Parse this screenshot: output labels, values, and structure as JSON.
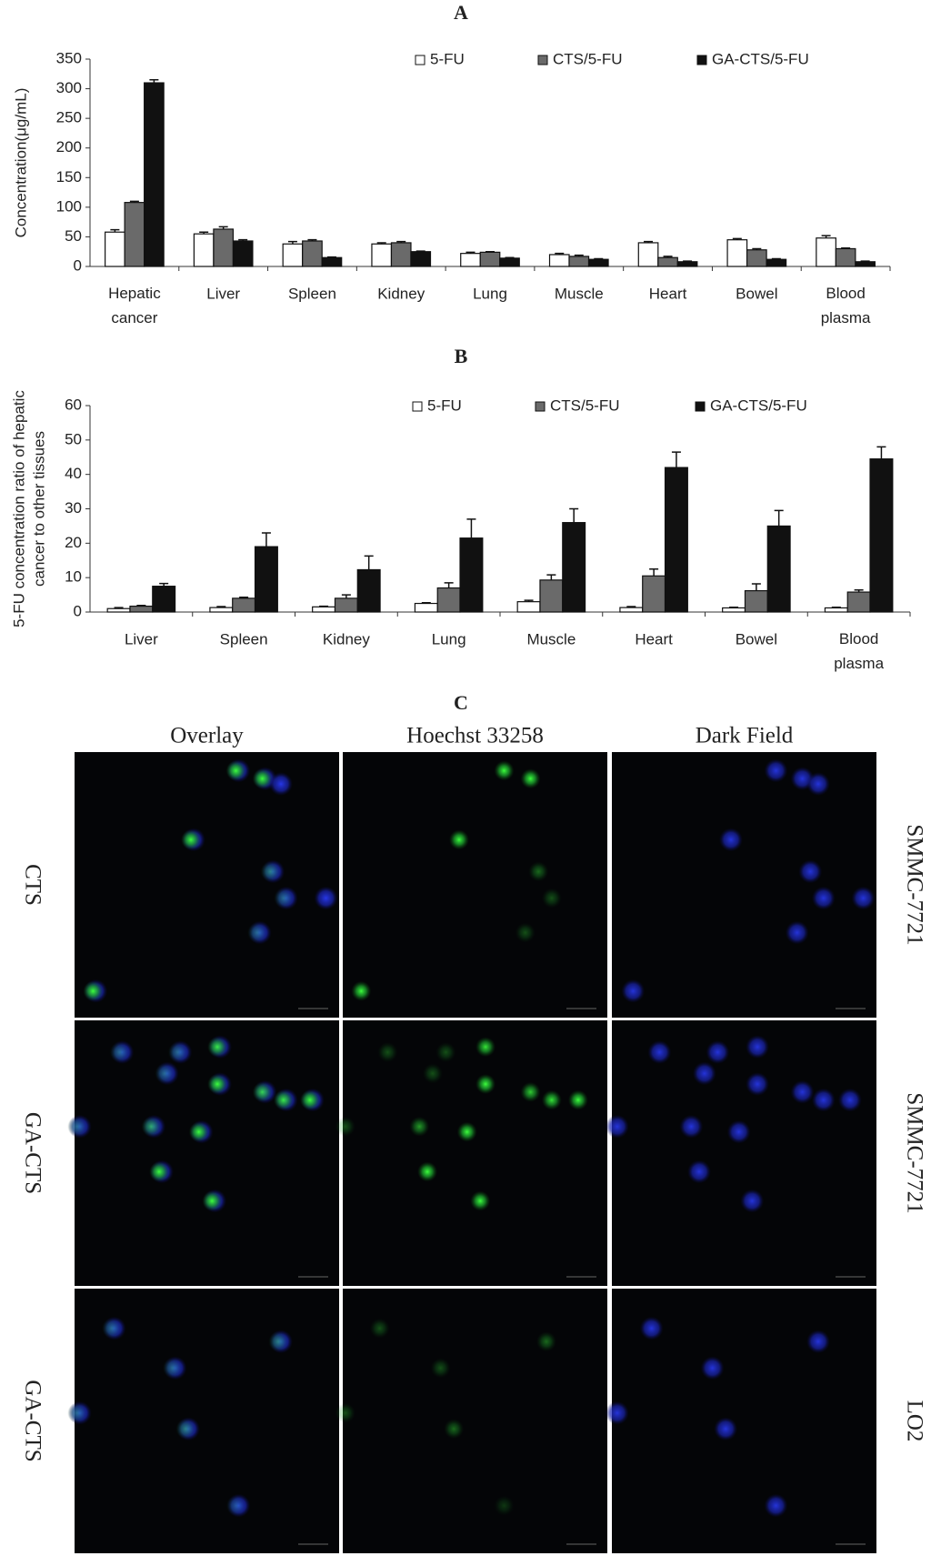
{
  "chart_data": [
    {
      "type": "bar",
      "title": "A",
      "y_label": "Concentration(μg/mL)",
      "categories": [
        "Hepatic cancer",
        "Liver",
        "Spleen",
        "Kidney",
        "Lung",
        "Muscle",
        "Heart",
        "Bowel",
        "Blood plasma"
      ],
      "series": [
        {
          "name": "5-FU",
          "color": "#ffffff",
          "values": [
            58,
            55,
            38,
            38,
            22,
            20,
            40,
            45,
            48
          ],
          "errors": [
            4,
            3,
            4,
            2,
            2,
            2,
            2,
            2,
            4
          ]
        },
        {
          "name": "CTS/5-FU",
          "color": "#6a6a6a",
          "values": [
            108,
            63,
            43,
            40,
            24,
            17,
            15,
            28,
            30
          ],
          "errors": [
            2,
            4,
            2,
            2,
            1,
            2,
            2,
            2,
            1
          ]
        },
        {
          "name": "GA-CTS/5-FU",
          "color": "#111111",
          "values": [
            310,
            43,
            15,
            25,
            14,
            12,
            8,
            12,
            8
          ],
          "errors": [
            5,
            2,
            1,
            1,
            1,
            1,
            1,
            1,
            1
          ]
        }
      ],
      "ylim": [
        0,
        350
      ],
      "yticks": [
        0,
        50,
        100,
        150,
        200,
        250,
        300,
        350
      ],
      "legend": "top-right"
    },
    {
      "type": "bar",
      "title": "B",
      "y_label_lines": [
        "5-FU concentration ratio of hepatic",
        "cancer to other tissues"
      ],
      "categories": [
        "Liver",
        "Spleen",
        "Kidney",
        "Lung",
        "Muscle",
        "Heart",
        "Bowel",
        "Blood plasma"
      ],
      "series": [
        {
          "name": "5-FU",
          "color": "#ffffff",
          "values": [
            1,
            1.3,
            1.5,
            2.5,
            3,
            1.3,
            1.2,
            1.2
          ],
          "errors": [
            0.3,
            0.3,
            0.2,
            0.2,
            0.4,
            0.3,
            0.2,
            0.2
          ]
        },
        {
          "name": "CTS/5-FU",
          "color": "#6a6a6a",
          "values": [
            1.7,
            4,
            4,
            7,
            9.3,
            10.5,
            6.2,
            5.8
          ],
          "errors": [
            0.2,
            0.3,
            1,
            1.5,
            1.5,
            2,
            2,
            0.6
          ]
        },
        {
          "name": "GA-CTS/5-FU",
          "color": "#111111",
          "values": [
            7.5,
            19,
            12.3,
            21.5,
            26,
            42,
            25,
            44.5
          ],
          "errors": [
            0.8,
            4,
            4,
            5.5,
            4,
            4.5,
            4.5,
            3.5
          ]
        }
      ],
      "ylim": [
        0,
        60
      ],
      "yticks": [
        0,
        10,
        20,
        30,
        40,
        50,
        60
      ],
      "legend": "top-right"
    }
  ],
  "panel_c": {
    "title": "C",
    "columns": [
      "Overlay",
      "Hoechst 33258",
      "Dark Field"
    ],
    "rows": [
      {
        "label": "CTS",
        "cell_line": "SMMC-7721"
      },
      {
        "label": "GA-CTS",
        "cell_line": "SMMC-7721"
      },
      {
        "label": "GA-CTS",
        "cell_line": "LO2"
      }
    ]
  }
}
